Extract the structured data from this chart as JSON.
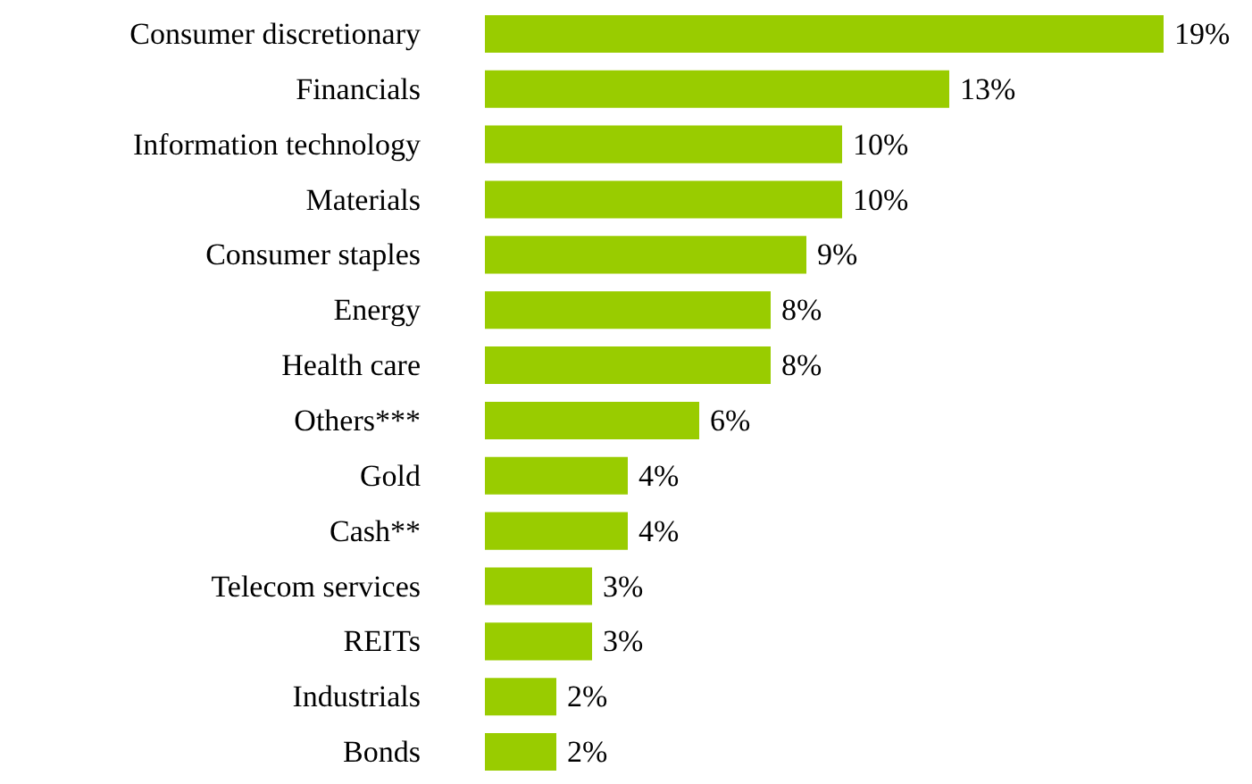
{
  "chart_data": {
    "type": "bar",
    "orientation": "horizontal",
    "categories": [
      "Consumer discretionary",
      "Financials",
      "Information technology",
      "Materials",
      "Consumer staples",
      "Energy",
      "Health care",
      "Others***",
      "Gold",
      "Cash**",
      "Telecom services",
      "REITs",
      "Industrials",
      "Bonds"
    ],
    "values": [
      19,
      13,
      10,
      10,
      9,
      8,
      8,
      6,
      4,
      4,
      3,
      3,
      2,
      2
    ],
    "value_labels": [
      "19%",
      "13%",
      "10%",
      "10%",
      "9%",
      "8%",
      "8%",
      "6%",
      "4%",
      "4%",
      "3%",
      "3%",
      "2%",
      "2%"
    ],
    "color": "#99cc00"
  }
}
